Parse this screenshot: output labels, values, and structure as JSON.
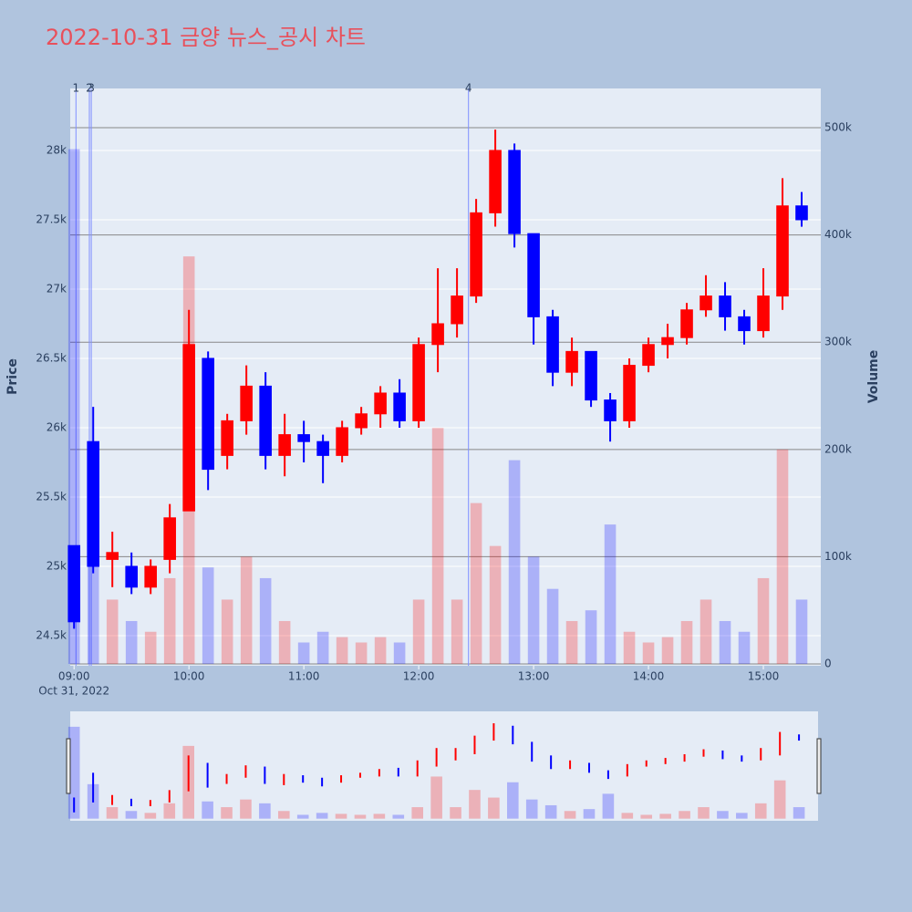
{
  "chart_data": {
    "type": "candlestick",
    "title": "2022-10-31 금양 뉴스_공시 차트",
    "ylabel": "Price",
    "y2label": "Volume",
    "increasing_color": "#ff0000",
    "decreasing_color": "#0000ff",
    "x": [
      "2022-10-31 09:00",
      "2022-10-31 09:10",
      "2022-10-31 09:20",
      "2022-10-31 09:30",
      "2022-10-31 09:40",
      "2022-10-31 09:50",
      "2022-10-31 10:00",
      "2022-10-31 10:10",
      "2022-10-31 10:20",
      "2022-10-31 10:30",
      "2022-10-31 10:40",
      "2022-10-31 10:50",
      "2022-10-31 11:00",
      "2022-10-31 11:10",
      "2022-10-31 11:20",
      "2022-10-31 11:30",
      "2022-10-31 11:40",
      "2022-10-31 11:50",
      "2022-10-31 12:00",
      "2022-10-31 12:10",
      "2022-10-31 12:20",
      "2022-10-31 12:30",
      "2022-10-31 12:40",
      "2022-10-31 12:50",
      "2022-10-31 13:00",
      "2022-10-31 13:10",
      "2022-10-31 13:20",
      "2022-10-31 13:30",
      "2022-10-31 13:40",
      "2022-10-31 13:50",
      "2022-10-31 14:00",
      "2022-10-31 14:10",
      "2022-10-31 14:20",
      "2022-10-31 14:30",
      "2022-10-31 14:40",
      "2022-10-31 14:50",
      "2022-10-31 15:00",
      "2022-10-31 15:10",
      "2022-10-31 15:20"
    ],
    "open": [
      25150,
      25900,
      25050,
      25000,
      24850,
      25050,
      25400,
      26500,
      25800,
      26050,
      26300,
      25800,
      25950,
      25900,
      25800,
      26000,
      26100,
      26250,
      26050,
      26600,
      26750,
      26950,
      27550,
      28000,
      27400,
      26800,
      26400,
      26550,
      26200,
      26050,
      26450,
      26600,
      26650,
      26850,
      26950,
      26800,
      26700,
      26950,
      27600
    ],
    "high": [
      25150,
      26150,
      25250,
      25100,
      25050,
      25450,
      26850,
      26550,
      26100,
      26450,
      26400,
      26100,
      26050,
      25950,
      26050,
      26150,
      26300,
      26350,
      26650,
      27150,
      27150,
      27650,
      28150,
      28050,
      27400,
      26850,
      26650,
      26550,
      26250,
      26500,
      26650,
      26750,
      26900,
      27100,
      27050,
      26850,
      27150,
      27800,
      27700
    ],
    "low": [
      24550,
      24950,
      24850,
      24800,
      24800,
      24950,
      25400,
      25550,
      25700,
      25950,
      25700,
      25650,
      25750,
      25600,
      25750,
      25950,
      26000,
      26000,
      26000,
      26400,
      26650,
      26900,
      27450,
      27300,
      26600,
      26300,
      26300,
      26150,
      25900,
      26000,
      26400,
      26500,
      26600,
      26800,
      26700,
      26600,
      26650,
      26850,
      27450
    ],
    "close": [
      24600,
      25000,
      25100,
      24850,
      25000,
      25350,
      26600,
      25700,
      26050,
      26300,
      25800,
      25950,
      25900,
      25800,
      26000,
      26100,
      26250,
      26050,
      26600,
      26750,
      26950,
      27550,
      28000,
      27400,
      26800,
      26400,
      26550,
      26200,
      26050,
      26450,
      26600,
      26650,
      26850,
      26950,
      26800,
      26700,
      26950,
      27600,
      27500
    ],
    "volume": [
      480000,
      180000,
      60000,
      40000,
      30000,
      80000,
      380000,
      90000,
      60000,
      100000,
      80000,
      40000,
      20000,
      30000,
      25000,
      20000,
      25000,
      20000,
      60000,
      220000,
      60000,
      150000,
      110000,
      190000,
      100000,
      70000,
      40000,
      50000,
      130000,
      30000,
      20000,
      25000,
      40000,
      60000,
      40000,
      30000,
      80000,
      200000,
      60000
    ],
    "xlim": [
      "2022-10-31 08:58",
      "2022-10-31 15:30"
    ],
    "xticks": [
      {
        "value": "2022-10-31 09:00",
        "label": "09:00"
      },
      {
        "value": "2022-10-31 10:00",
        "label": "10:00"
      },
      {
        "value": "2022-10-31 11:00",
        "label": "11:00"
      },
      {
        "value": "2022-10-31 12:00",
        "label": "12:00"
      },
      {
        "value": "2022-10-31 13:00",
        "label": "13:00"
      },
      {
        "value": "2022-10-31 14:00",
        "label": "14:00"
      },
      {
        "value": "2022-10-31 15:00",
        "label": "15:00"
      }
    ],
    "x_date_label": "Oct 31, 2022",
    "ylim": [
      24283,
      28447
    ],
    "yticks": [
      {
        "value": 24500,
        "label": "24.5k"
      },
      {
        "value": 25000,
        "label": "25k"
      },
      {
        "value": 25500,
        "label": "25.5k"
      },
      {
        "value": 26000,
        "label": "26k"
      },
      {
        "value": 26500,
        "label": "26.5k"
      },
      {
        "value": 27000,
        "label": "27k"
      },
      {
        "value": 27500,
        "label": "27.5k"
      },
      {
        "value": 28000,
        "label": "28k"
      }
    ],
    "y2lim": [
      -1700,
      536600
    ],
    "y2ticks": [
      0,
      {
        "value": 100000,
        "label": "100k"
      },
      {
        "value": 200000,
        "label": "200k"
      },
      {
        "value": 300000,
        "label": "300k"
      },
      {
        "value": 400000,
        "label": "400k"
      },
      {
        "value": 500000,
        "label": "500k"
      }
    ],
    "events": [
      {
        "x": "2022-10-31 09:01",
        "label": "1"
      },
      {
        "x": "2022-10-31 09:08",
        "label": "2"
      },
      {
        "x": "2022-10-31 09:09",
        "label": "3"
      },
      {
        "x": "2022-10-31 12:26",
        "label": "4"
      }
    ],
    "rangeslider": true
  }
}
